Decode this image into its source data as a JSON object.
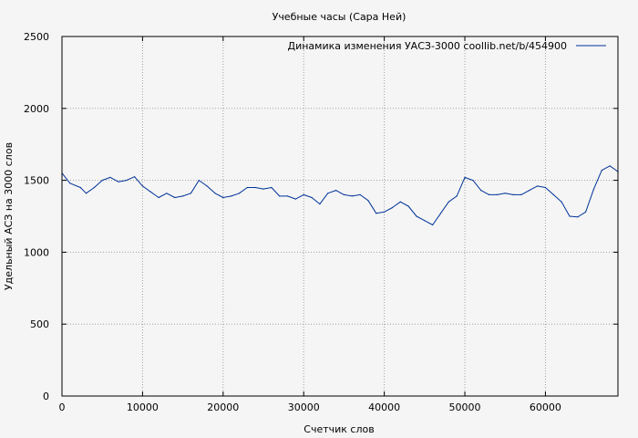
{
  "chart_data": {
    "type": "line",
    "title": "Учебные часы (Сара Ней)",
    "xlabel": "Счетчик слов",
    "ylabel": "Удельный АСЗ на 3000 слов",
    "xlim": [
      0,
      69000
    ],
    "ylim": [
      0,
      2500
    ],
    "xticks": [
      0,
      10000,
      20000,
      30000,
      40000,
      50000,
      60000
    ],
    "yticks": [
      0,
      500,
      1000,
      1500,
      2000,
      2500
    ],
    "grid": true,
    "legend_position": "top-right",
    "series": [
      {
        "name": "Динамика изменения УАСЗ-3000  coollib.net/b/454900",
        "color": "#003399",
        "x": [
          0,
          1000,
          2300,
          3000,
          4000,
          5000,
          6000,
          7000,
          8000,
          9000,
          10000,
          11000,
          12000,
          13000,
          14000,
          15000,
          16000,
          17000,
          18000,
          19000,
          20000,
          21000,
          22000,
          23000,
          24000,
          25000,
          26000,
          27000,
          28000,
          29000,
          30000,
          31000,
          32000,
          33000,
          34000,
          35000,
          36000,
          37000,
          38000,
          39000,
          40000,
          41000,
          42000,
          43000,
          44000,
          45000,
          46000,
          47000,
          48000,
          49000,
          50000,
          51000,
          52000,
          53000,
          54000,
          55000,
          56000,
          57000,
          58000,
          59000,
          60000,
          61000,
          62000,
          63000,
          64000,
          65000,
          66000,
          67000,
          68000,
          69000
        ],
        "y": [
          1550,
          1480,
          1450,
          1410,
          1450,
          1500,
          1520,
          1490,
          1500,
          1525,
          1460,
          1420,
          1380,
          1410,
          1380,
          1390,
          1410,
          1500,
          1460,
          1410,
          1380,
          1390,
          1410,
          1450,
          1450,
          1440,
          1450,
          1390,
          1390,
          1370,
          1400,
          1380,
          1335,
          1410,
          1430,
          1400,
          1390,
          1400,
          1360,
          1270,
          1280,
          1310,
          1350,
          1320,
          1250,
          1220,
          1190,
          1270,
          1350,
          1390,
          1520,
          1500,
          1430,
          1400,
          1400,
          1410,
          1400,
          1400,
          1430,
          1460,
          1450,
          1400,
          1350,
          1250,
          1245,
          1280,
          1440,
          1570,
          1600,
          1560
        ]
      }
    ]
  }
}
